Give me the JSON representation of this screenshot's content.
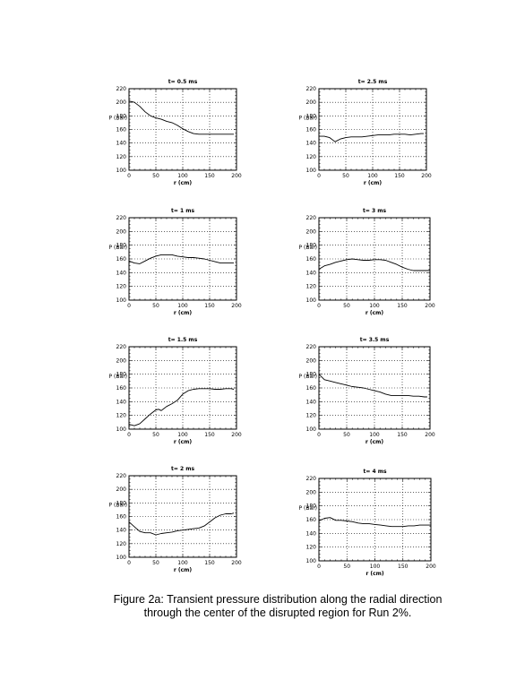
{
  "caption": {
    "line1": "Figure 2a:  Transient pressure distribution along the radial direction",
    "line2": "through the center of the disrupted region for Run 2%."
  },
  "style": {
    "line_color": "#000000",
    "grid_color": "#000000"
  },
  "chart_data": [
    {
      "type": "line",
      "title": "t= 0.5 ms",
      "xlabel": "r (cm)",
      "ylabel": "P (Bar)",
      "xlim": [
        0,
        200
      ],
      "ylim": [
        100,
        220
      ],
      "x_ticks": [
        0,
        50,
        100,
        150,
        200
      ],
      "y_ticks": [
        100,
        120,
        140,
        160,
        180,
        200,
        220
      ],
      "grid": "dotted",
      "x": [
        0,
        10,
        20,
        30,
        40,
        50,
        60,
        70,
        80,
        90,
        100,
        110,
        120,
        130,
        140,
        150,
        160,
        170,
        180,
        190,
        195
      ],
      "values": [
        202,
        200,
        194,
        186,
        180,
        177,
        175,
        172,
        170,
        166,
        161,
        157,
        154,
        153,
        153,
        153,
        153,
        153,
        153,
        153,
        153
      ]
    },
    {
      "type": "line",
      "title": "t= 2.5 ms",
      "xlabel": "r (cm)",
      "ylabel": "P (Bar)",
      "xlim": [
        0,
        200
      ],
      "ylim": [
        100,
        220
      ],
      "x_ticks": [
        0,
        50,
        100,
        150,
        200
      ],
      "y_ticks": [
        100,
        120,
        140,
        160,
        180,
        200,
        220
      ],
      "grid": "dotted",
      "x": [
        0,
        10,
        20,
        30,
        40,
        50,
        60,
        70,
        80,
        90,
        100,
        110,
        120,
        130,
        140,
        150,
        160,
        170,
        180,
        190,
        195
      ],
      "values": [
        150,
        150,
        148,
        142,
        146,
        148,
        149,
        149,
        149,
        150,
        151,
        152,
        152,
        152,
        153,
        153,
        153,
        152,
        153,
        154,
        154
      ]
    },
    {
      "type": "line",
      "title": "t= 1 ms",
      "xlabel": "r (cm)",
      "ylabel": "P (Bar)",
      "xlim": [
        0,
        200
      ],
      "ylim": [
        100,
        220
      ],
      "x_ticks": [
        0,
        50,
        100,
        150,
        200
      ],
      "y_ticks": [
        100,
        120,
        140,
        160,
        180,
        200,
        220
      ],
      "grid": "dotted",
      "x": [
        0,
        10,
        20,
        30,
        40,
        50,
        60,
        70,
        80,
        90,
        100,
        110,
        120,
        130,
        140,
        150,
        160,
        170,
        180,
        190,
        195
      ],
      "values": [
        157,
        154,
        153,
        157,
        161,
        164,
        166,
        166,
        166,
        164,
        163,
        162,
        162,
        161,
        160,
        158,
        156,
        154,
        154,
        154,
        154
      ]
    },
    {
      "type": "line",
      "title": "t= 3 ms",
      "xlabel": "r (cm)",
      "ylabel": "P (Bar)",
      "xlim": [
        0,
        200
      ],
      "ylim": [
        100,
        220
      ],
      "x_ticks": [
        0,
        50,
        100,
        150,
        200
      ],
      "y_ticks": [
        100,
        120,
        140,
        160,
        180,
        200,
        220
      ],
      "grid": "dotted",
      "x": [
        0,
        10,
        20,
        30,
        40,
        50,
        60,
        70,
        80,
        90,
        100,
        110,
        120,
        130,
        140,
        150,
        160,
        170,
        180,
        190,
        200
      ],
      "values": [
        145,
        150,
        152,
        155,
        157,
        159,
        160,
        159,
        158,
        158,
        159,
        159,
        158,
        155,
        152,
        148,
        145,
        143,
        143,
        143,
        143
      ]
    },
    {
      "type": "line",
      "title": "t= 1.5 ms",
      "xlabel": "r (cm)",
      "ylabel": "P (Bar)",
      "xlim": [
        0,
        200
      ],
      "ylim": [
        100,
        220
      ],
      "x_ticks": [
        0,
        50,
        100,
        150,
        200
      ],
      "y_ticks": [
        100,
        120,
        140,
        160,
        180,
        200,
        220
      ],
      "grid": "dotted",
      "x": [
        0,
        10,
        20,
        30,
        40,
        50,
        55,
        60,
        65,
        70,
        80,
        90,
        100,
        110,
        120,
        130,
        140,
        150,
        160,
        170,
        180,
        190,
        195
      ],
      "values": [
        107,
        105,
        108,
        115,
        122,
        128,
        129,
        127,
        130,
        133,
        137,
        142,
        151,
        156,
        158,
        159,
        159,
        159,
        158,
        158,
        159,
        159,
        158
      ]
    },
    {
      "type": "line",
      "title": "t= 3.5 ms",
      "xlabel": "r (cm)",
      "ylabel": "P (Bar)",
      "xlim": [
        0,
        200
      ],
      "ylim": [
        100,
        220
      ],
      "x_ticks": [
        0,
        50,
        100,
        150,
        200
      ],
      "y_ticks": [
        100,
        120,
        140,
        160,
        180,
        200,
        220
      ],
      "grid": "dotted",
      "x": [
        0,
        10,
        20,
        30,
        40,
        50,
        60,
        70,
        80,
        90,
        100,
        110,
        120,
        130,
        140,
        150,
        160,
        170,
        180,
        190,
        195
      ],
      "values": [
        180,
        172,
        170,
        168,
        166,
        164,
        162,
        161,
        160,
        158,
        156,
        154,
        151,
        149,
        149,
        149,
        149,
        148,
        148,
        147,
        147
      ]
    },
    {
      "type": "line",
      "title": "t= 2 ms",
      "xlabel": "r (cm)",
      "ylabel": "P (Bar)",
      "xlim": [
        0,
        200
      ],
      "ylim": [
        100,
        220
      ],
      "x_ticks": [
        0,
        50,
        100,
        150,
        200
      ],
      "y_ticks": [
        100,
        120,
        140,
        160,
        180,
        200,
        220
      ],
      "grid": "dotted",
      "x": [
        0,
        10,
        20,
        30,
        40,
        50,
        60,
        70,
        80,
        90,
        100,
        110,
        120,
        130,
        140,
        150,
        160,
        170,
        180,
        190,
        195
      ],
      "values": [
        152,
        145,
        138,
        136,
        136,
        133,
        135,
        136,
        137,
        139,
        140,
        141,
        142,
        143,
        146,
        152,
        158,
        162,
        164,
        164,
        165
      ]
    },
    {
      "type": "line",
      "title": "t= 4 ms",
      "xlabel": "r (cm)",
      "ylabel": "P (Bar)",
      "xlim": [
        0,
        200
      ],
      "ylim": [
        100,
        220
      ],
      "x_ticks": [
        0,
        50,
        100,
        150,
        200
      ],
      "y_ticks": [
        100,
        120,
        140,
        160,
        180,
        200,
        220
      ],
      "grid": "dotted",
      "x": [
        0,
        10,
        20,
        30,
        40,
        50,
        60,
        70,
        80,
        90,
        100,
        110,
        120,
        130,
        140,
        150,
        160,
        170,
        180,
        190,
        200
      ],
      "values": [
        158,
        162,
        163,
        159,
        159,
        158,
        157,
        155,
        154,
        154,
        153,
        152,
        151,
        150,
        150,
        150,
        151,
        151,
        152,
        152,
        152
      ]
    }
  ]
}
